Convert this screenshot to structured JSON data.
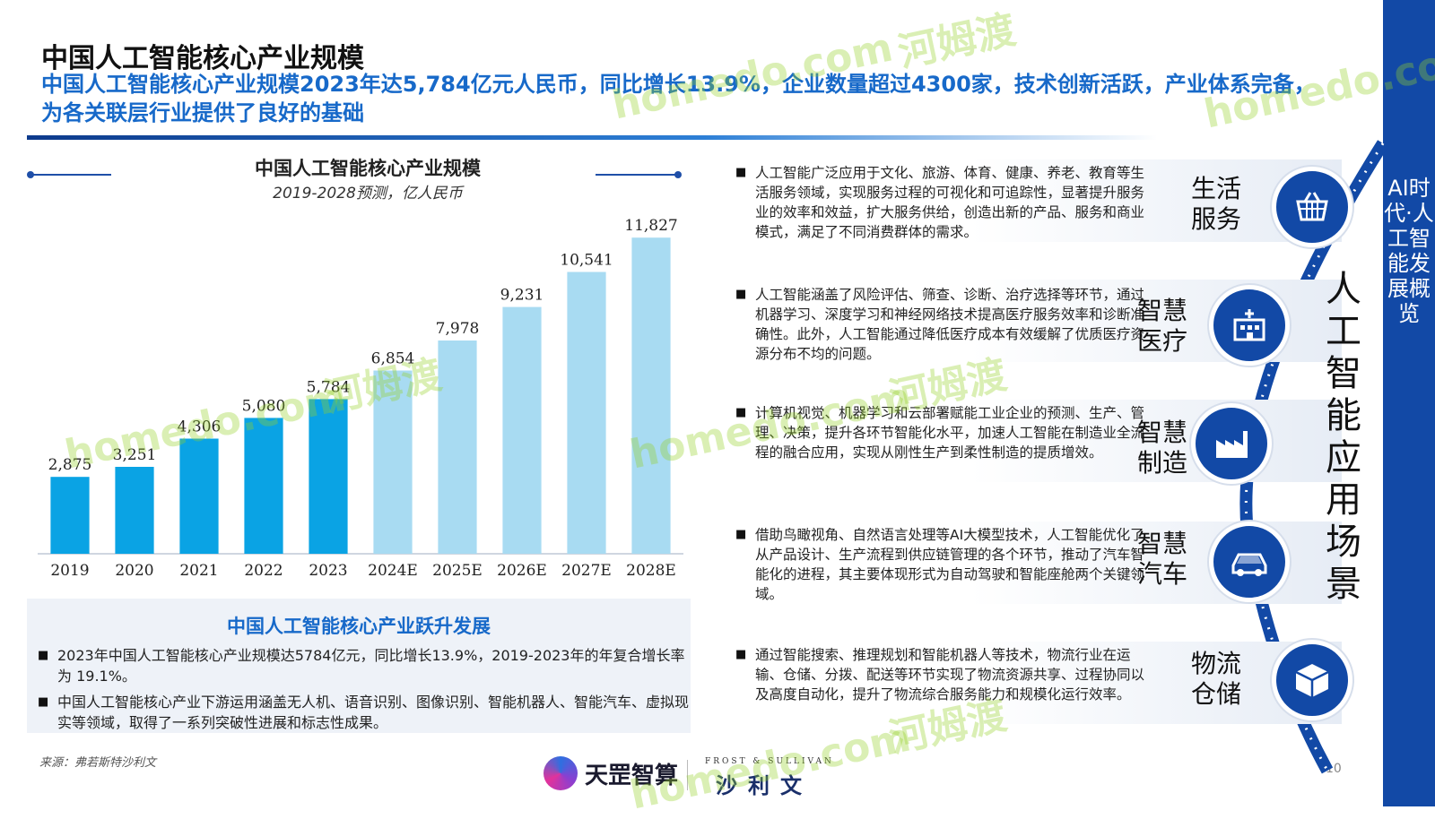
{
  "header": {
    "title": "中国人工智能核心产业规模",
    "subtitle": "中国人工智能核心产业规模2023年达5,784亿元人民币，同比增长13.9%，企业数量超过4300家，技术创新活跃，产业体系完备，为各关联层行业提供了良好的基础"
  },
  "side_band": {
    "text": "AI时代·人工智能发展概览"
  },
  "chart_data": {
    "type": "bar",
    "title": "中国人工智能核心产业规模",
    "subtitle": "2019-2028预测，亿人民币",
    "categories": [
      "2019",
      "2020",
      "2021",
      "2022",
      "2023",
      "2024E",
      "2025E",
      "2026E",
      "2027E",
      "2028E"
    ],
    "values": [
      2875,
      3251,
      4306,
      5080,
      5784,
      6854,
      7978,
      9231,
      10541,
      11827
    ],
    "value_labels": [
      "2,875",
      "3,251",
      "4,306",
      "5,080",
      "5,784",
      "6,854",
      "7,978",
      "9,231",
      "10,541",
      "11,827"
    ],
    "actual_color": "#0aa3e4",
    "forecast_color": "#a8dbf2",
    "ylim": [
      0,
      12000
    ]
  },
  "development": {
    "title": "中国人工智能核心产业跃升发展",
    "items": [
      "2023年中国人工智能核心产业规模达5784亿元，同比增长13.9%，2019-2023年的年复合增长率为 19.1%。",
      "中国人工智能核心产业下游运用涵盖无人机、语音识别、图像识别、智能机器人、智能汽车、虚拟现实等领域，取得了一系列突破性进展和标志性成果。"
    ]
  },
  "source": "来源：弗若斯特沙利文",
  "page_number": "10",
  "logos": {
    "tianji": "天罡智算",
    "frost_small": "FROST & SULLIVAN",
    "frost_cn": "沙利文"
  },
  "center_title": "人工智能应用场景",
  "scenarios": [
    {
      "label": "生活服务",
      "icon": "shopping-basket-icon",
      "text": "人工智能广泛应用于文化、旅游、体育、健康、养老、教育等生活服务领域，实现服务过程的可视化和可追踪性，显著提升服务业的效率和效益，扩大服务供给，创造出新的产品、服务和商业模式，满足了不同消费群体的需求。"
    },
    {
      "label": "智慧医疗",
      "icon": "hospital-icon",
      "text": "人工智能涵盖了风险评估、筛查、诊断、治疗选择等环节，通过机器学习、深度学习和神经网络技术提高医疗服务效率和诊断准确性。此外，人工智能通过降低医疗成本有效缓解了优质医疗资源分布不均的问题。"
    },
    {
      "label": "智慧制造",
      "icon": "factory-icon",
      "text": "计算机视觉、机器学习和云部署赋能工业企业的预测、生产、管理、决策，提升各环节智能化水平，加速人工智能在制造业全流程的融合应用，实现从刚性生产到柔性制造的提质增效。"
    },
    {
      "label": "智慧汽车",
      "icon": "car-icon",
      "text": "借助鸟瞰视角、自然语言处理等AI大模型技术，人工智能优化了从产品设计、生产流程到供应链管理的各个环节，推动了汽车智能化的进程，其主要体现形式为自动驾驶和智能座舱两个关键领域。"
    },
    {
      "label": "物流仓储",
      "icon": "package-box-icon",
      "text": "通过智能搜索、推理规划和智能机器人等技术，物流行业在运输、仓储、分拨、配送等环节实现了物流资源共享、过程协同以及高度自动化，提升了物流综合服务能力和规模化运行效率。"
    }
  ],
  "watermarks": [
    "homedo.com",
    "河姆渡"
  ]
}
